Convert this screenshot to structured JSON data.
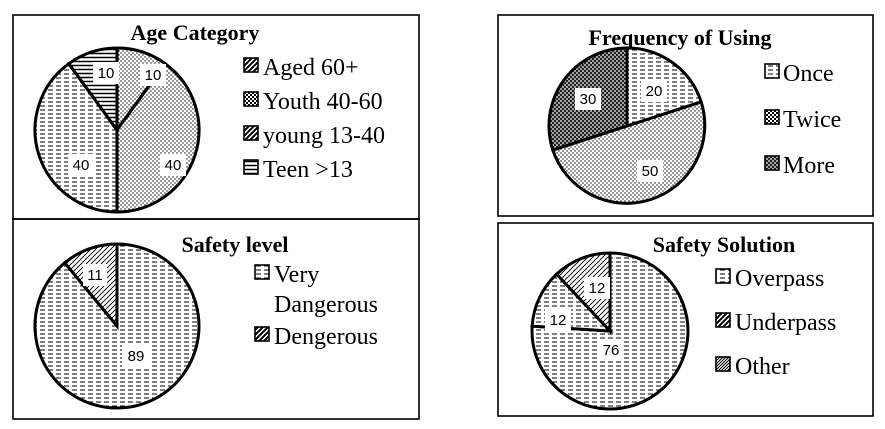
{
  "chart_data": [
    {
      "type": "pie",
      "title": "Age Category",
      "categories": [
        "Aged 60+",
        "Youth 40-60",
        "young 13-40",
        "Teen >13"
      ],
      "values": [
        10,
        40,
        40,
        10
      ],
      "data_labels": [
        "10",
        "40",
        "40",
        "10"
      ],
      "legend_position": "right"
    },
    {
      "type": "pie",
      "title": "Frequency of Using",
      "categories": [
        "Once",
        "Twice",
        "More"
      ],
      "values": [
        20,
        50,
        30
      ],
      "data_labels": [
        "20",
        "50",
        "30"
      ],
      "legend_position": "right"
    },
    {
      "type": "pie",
      "title": "Safety level",
      "categories": [
        "Very Dangerous",
        "Dengerous"
      ],
      "legend_lines": [
        [
          "Very",
          "Dangerous"
        ],
        [
          "Dengerous"
        ]
      ],
      "values": [
        89,
        11
      ],
      "data_labels": [
        "89",
        "11"
      ],
      "legend_position": "right"
    },
    {
      "type": "pie",
      "title": "Safety Solution",
      "categories": [
        "Overpass",
        "Underpass",
        "Other"
      ],
      "values": [
        76,
        12,
        12
      ],
      "data_labels": [
        "76",
        "12",
        "12"
      ],
      "legend_position": "right"
    }
  ]
}
